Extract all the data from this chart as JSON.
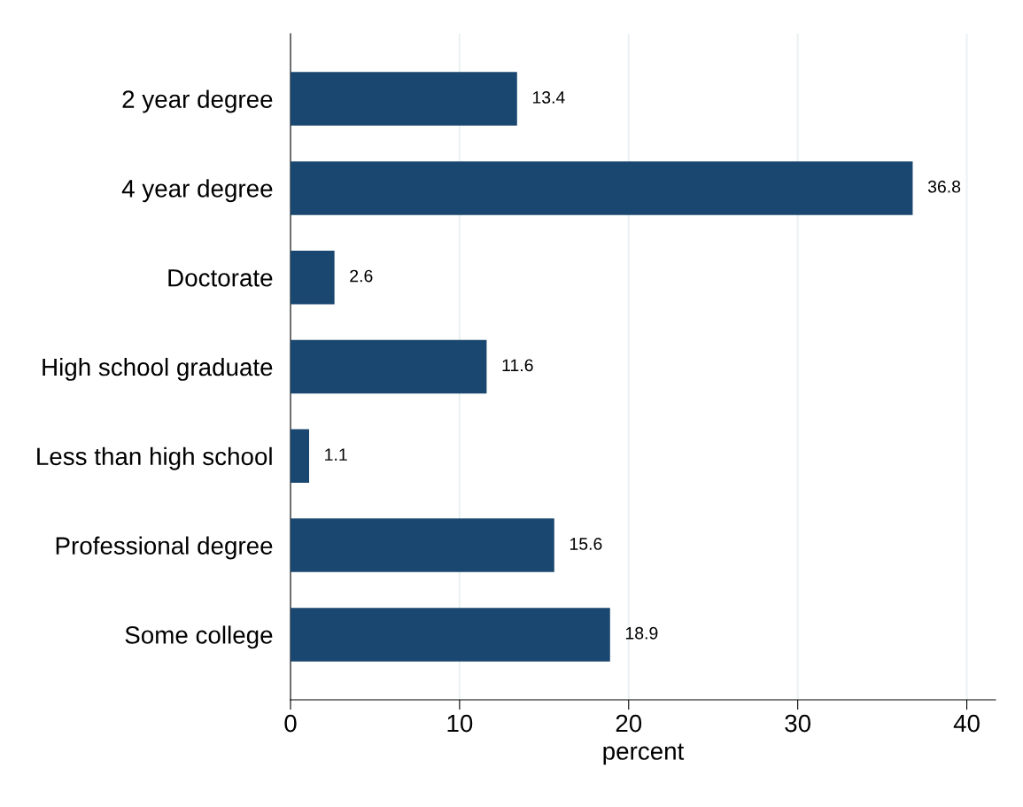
{
  "chart_data": {
    "type": "bar",
    "orientation": "horizontal",
    "xlabel": "percent",
    "categories": [
      "2 year degree",
      "4 year degree",
      "Doctorate",
      "High school graduate",
      "Less than high school",
      "Professional degree",
      "Some college"
    ],
    "values": [
      13.4,
      36.8,
      2.6,
      11.6,
      1.1,
      15.6,
      18.9
    ],
    "color": "#1a476f",
    "data_labels": true,
    "xlim": [
      0,
      41.7
    ],
    "xticks": [
      0,
      10,
      20,
      30,
      40
    ],
    "grid": "x",
    "legend": false
  }
}
